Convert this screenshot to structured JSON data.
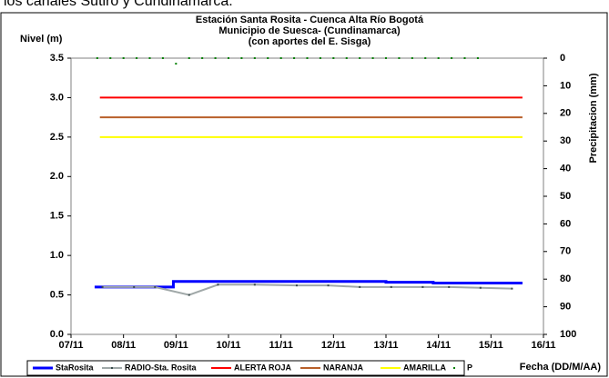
{
  "caption": "los canales Sutiro y Cundinamarca.",
  "chart_data": {
    "type": "line",
    "title": [
      "Estación Santa Rosita - Cuenca Alta Río Bogotá",
      "Municipio de Suesca- (Cundinamarca)",
      "(con aportes del  E. Sisga)"
    ],
    "y_label": "Nivel (m)",
    "y2_label": "Precipitacion (mm)",
    "x_label": "Fecha (DD/M/AA)",
    "xlim": [
      7,
      16
    ],
    "xticks": [
      {
        "value": 7,
        "label": "07/11"
      },
      {
        "value": 8,
        "label": "08/11"
      },
      {
        "value": 9,
        "label": "09/11"
      },
      {
        "value": 10,
        "label": "10/11"
      },
      {
        "value": 11,
        "label": "11/11"
      },
      {
        "value": 12,
        "label": "12/11"
      },
      {
        "value": 13,
        "label": "13/11"
      },
      {
        "value": 14,
        "label": "14/11"
      },
      {
        "value": 15,
        "label": "15/11"
      },
      {
        "value": 16,
        "label": "16/11"
      }
    ],
    "ylim": [
      0,
      3.5
    ],
    "yticks": [
      {
        "value": 0,
        "label": "0.0"
      },
      0.5,
      {
        "value": 1,
        "label": "1.0"
      },
      1.5,
      {
        "value": 2,
        "label": "2.0"
      },
      2.5,
      {
        "value": 3,
        "label": "3.0"
      },
      3.5
    ],
    "y2lim": [
      100,
      0
    ],
    "y2ticks": [
      0,
      10,
      20,
      30,
      40,
      50,
      60,
      70,
      80,
      90,
      100
    ],
    "legend": "bottom",
    "series": [
      {
        "name": "StaRosita",
        "color": "#0000ff",
        "line": true,
        "marker": false,
        "width": 3,
        "x": [
          7.45,
          8.95,
          8.95,
          13.0,
          13.0,
          13.9,
          13.9,
          15.6
        ],
        "values": [
          0.6,
          0.6,
          0.67,
          0.67,
          0.66,
          0.66,
          0.65,
          0.65
        ]
      },
      {
        "name": "RADIO-Sta. Rosita",
        "color": "#a0a8a8",
        "line": true,
        "marker": true,
        "width": 2,
        "x": [
          7.6,
          8.2,
          8.6,
          9.25,
          9.8,
          10.5,
          11.3,
          11.9,
          12.5,
          13.1,
          13.7,
          14.2,
          14.8,
          15.4
        ],
        "values": [
          0.6,
          0.6,
          0.6,
          0.5,
          0.63,
          0.63,
          0.62,
          0.62,
          0.6,
          0.6,
          0.6,
          0.6,
          0.59,
          0.58
        ]
      },
      {
        "name": "ALERTA ROJA",
        "color": "#ff0000",
        "line": true,
        "marker": false,
        "width": 2,
        "x": [
          7.55,
          15.6
        ],
        "values": [
          3.0,
          3.0
        ]
      },
      {
        "name": "NARANJA",
        "color": "#b8602a",
        "line": true,
        "marker": false,
        "width": 2,
        "x": [
          7.55,
          15.6
        ],
        "values": [
          2.75,
          2.75
        ]
      },
      {
        "name": "AMARILLA",
        "color": "#ffff00",
        "line": true,
        "marker": false,
        "width": 2,
        "x": [
          7.55,
          15.6
        ],
        "values": [
          2.5,
          2.5
        ]
      },
      {
        "name": "P",
        "color": "#008000",
        "line": false,
        "marker": true,
        "axis": "y2",
        "x": [
          7.5,
          7.75,
          8.0,
          8.25,
          8.5,
          8.75,
          9.0,
          9.25,
          9.5,
          9.75,
          10.0,
          10.25,
          10.5,
          10.75,
          11.0,
          11.25,
          11.5,
          11.75,
          12.0,
          12.25,
          12.5,
          12.75,
          13.0,
          13.25,
          13.5,
          13.75,
          14.0,
          14.25,
          14.5,
          14.75
        ],
        "values": [
          0,
          0,
          0,
          0,
          0,
          0,
          2,
          0,
          0,
          0,
          0,
          0,
          0,
          0,
          0,
          0,
          0,
          0,
          0,
          0,
          0,
          0,
          0,
          0,
          0,
          0,
          0,
          0,
          0,
          0
        ]
      }
    ]
  }
}
